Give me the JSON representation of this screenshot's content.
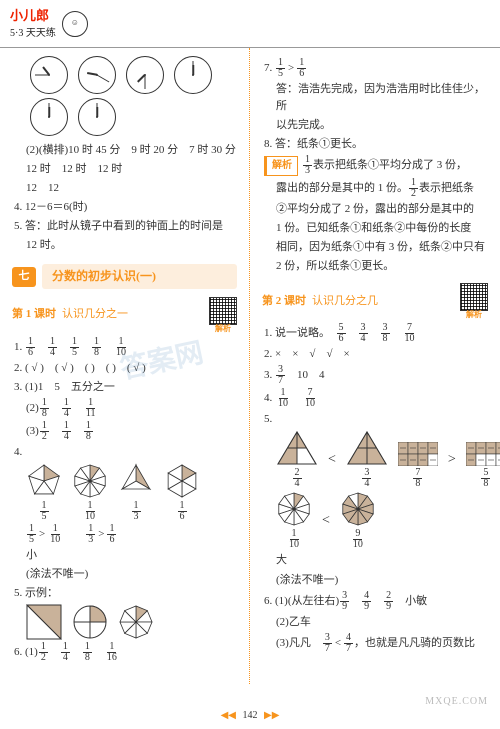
{
  "header": {
    "brand1": "小儿郎",
    "brand2": "5·3 天天练"
  },
  "colors": {
    "accent": "#f7941d",
    "text": "#333333",
    "brand": "#ee2200",
    "bg": "#ffffff",
    "unit_bg": "#fdeedd",
    "wm": "#bbbbbb"
  },
  "left": {
    "clocks": [
      {
        "hr_deg": 322,
        "mn_deg": 270
      },
      {
        "hr_deg": 280,
        "mn_deg": 120
      },
      {
        "hr_deg": 225,
        "mn_deg": 180
      },
      {
        "hr_deg": 0,
        "mn_deg": 0
      },
      {
        "hr_deg": 0,
        "mn_deg": 0
      },
      {
        "hr_deg": 0,
        "mn_deg": 0
      }
    ],
    "q2_lead": "(2)(横排)",
    "q2_times": "10 时 45 分　9 时 20 分　7 时 30 分",
    "q2b": "12 时　12 时　12 时",
    "q2c": "12　12",
    "q4": "4. 12－6＝6(时)",
    "q5": "5. 答：此时从镜子中看到的钟面上的时间是",
    "q5b": "12 时。",
    "unit_num": "七",
    "unit_title": "分数的初步认识(一)",
    "lesson1": "第 1 课时",
    "lesson1_sub": "认识几分之一",
    "qr_label": "解析",
    "l1q1": "1. ",
    "l1q1_frs": [
      [
        "1",
        "6"
      ],
      [
        "1",
        "4"
      ],
      [
        "1",
        "5"
      ],
      [
        "1",
        "8"
      ],
      [
        "1",
        "10"
      ]
    ],
    "l1q2": "2. ( √ )　( √ )　(    )　(    )　( √ )",
    "l1q3a": "3. (1)1　5　五分之一",
    "l1q3b_lead": "(2)",
    "l1q3b_frs": [
      [
        "1",
        "8"
      ],
      [
        "1",
        "4"
      ],
      [
        "1",
        "11"
      ]
    ],
    "l1q3c_lead": "(3)",
    "l1q3c_frs": [
      [
        "1",
        "2"
      ],
      [
        "1",
        "4"
      ],
      [
        "1",
        "8"
      ]
    ],
    "l1q4": "4. ",
    "l1q4_items": [
      {
        "sides": 5,
        "label": [
          "1",
          "5"
        ],
        "filled": 1
      },
      {
        "sides": 10,
        "label": [
          "1",
          "10"
        ],
        "filled": 1
      },
      {
        "sides": 3,
        "label": [
          "1",
          "3"
        ],
        "filled": 1
      },
      {
        "sides": 6,
        "label": [
          "1",
          "6"
        ],
        "filled": 1
      }
    ],
    "l1q4_cmp": [
      [
        [
          "1",
          "5"
        ],
        ">",
        [
          "1",
          "10"
        ]
      ],
      [
        [
          "1",
          "3"
        ],
        ">",
        [
          "1",
          "6"
        ]
      ]
    ],
    "l1q4_tail": "小",
    "l1q4_note": "(涂法不唯一)",
    "l1q5": "5. 示例：",
    "l1q5_shapes": [
      "square_diag",
      "circle_quarter",
      "oct_eighth"
    ],
    "l1q6": "6. (1)",
    "l1q6_frs": [
      [
        "1",
        "2"
      ],
      [
        "1",
        "4"
      ],
      [
        "1",
        "8"
      ],
      [
        "1",
        "16"
      ]
    ]
  },
  "right": {
    "q7_lead": "7. ",
    "q7_fr": [
      [
        "1",
        "5"
      ],
      ">",
      [
        "1",
        "6"
      ]
    ],
    "q7_ans": "答：浩浩先完成，因为浩浩用时比佳佳少，所",
    "q7_ans2": "以先完成。",
    "q8": "8. 答：纸条①更长。",
    "parse_label": "解析",
    "parse_body1": "表示把纸条①平均分成了 3 份，",
    "parse_fr1": [
      "1",
      "3"
    ],
    "parse_body2": "露出的部分是其中的 1 份。",
    "parse_fr2": [
      "1",
      "2"
    ],
    "parse_body2b": "表示把纸条",
    "parse_body3": "②平均分成了 2 份，露出的部分是其中的",
    "parse_body4": "1 份。已知纸条①和纸条②中每份的长度",
    "parse_body5": "相同，因为纸条①中有 3 份，纸条②中只有",
    "parse_body6": "2 份，所以纸条①更长。",
    "lesson2": "第 2 课时",
    "lesson2_sub": "认识几分之几",
    "qr_label": "解析",
    "l2q1": "1. 说一说略。",
    "l2q1_frs": [
      [
        "5",
        "6"
      ],
      [
        "3",
        "4"
      ],
      [
        "3",
        "8"
      ],
      [
        "7",
        "10"
      ]
    ],
    "l2q2": "2. ×　×　√　√　×",
    "l2q3": "3. ",
    "l2q3_frs": [
      [
        "3",
        "7"
      ]
    ],
    "l2q3_tail": "　10　4",
    "l2q4": "4. ",
    "l2q4_frs": [
      [
        "1",
        "10"
      ],
      [
        "7",
        "10"
      ]
    ],
    "l2q5": "5. ",
    "l2q5_row1": [
      {
        "type": "tri",
        "cols": 2,
        "rows": 2,
        "fill": 2,
        "label": [
          "2",
          "4"
        ],
        "cmp": "<"
      },
      {
        "type": "tri",
        "cols": 2,
        "rows": 2,
        "fill": 3,
        "label": [
          "3",
          "4"
        ]
      },
      {
        "type": "rect",
        "cols": 4,
        "rows": 2,
        "fill": 7,
        "label": [
          "7",
          "8"
        ],
        "cmp": ">"
      },
      {
        "type": "rect",
        "cols": 4,
        "rows": 2,
        "fill": 5,
        "label": [
          "5",
          "8"
        ]
      }
    ],
    "l2q5_row2": [
      {
        "type": "pent",
        "n": 10,
        "fill": 1,
        "label": [
          "1",
          "10"
        ],
        "cmp": "<"
      },
      {
        "type": "pent",
        "n": 10,
        "fill": 9,
        "label": [
          "9",
          "10"
        ]
      }
    ],
    "l2q5_tail": "大",
    "l2q5_note": "(涂法不唯一)",
    "l2q6a": "6. (1)(从左往右)",
    "l2q6a_frs": [
      [
        "3",
        "9"
      ],
      [
        "4",
        "9"
      ],
      [
        "2",
        "9"
      ]
    ],
    "l2q6a_tail": "　小敏",
    "l2q6b": "(2)乙车",
    "l2q6c_lead": "(3)凡凡　",
    "l2q6c_fr": [
      [
        "3",
        "7"
      ],
      "<",
      [
        "4",
        "7"
      ]
    ],
    "l2q6c_tail": "，也就是凡凡骑的页数比"
  },
  "footer": {
    "l": "◀◀",
    "page": "142",
    "r": "▶▶"
  },
  "watermark": "MXQE.COM",
  "watermark2": "答案网"
}
